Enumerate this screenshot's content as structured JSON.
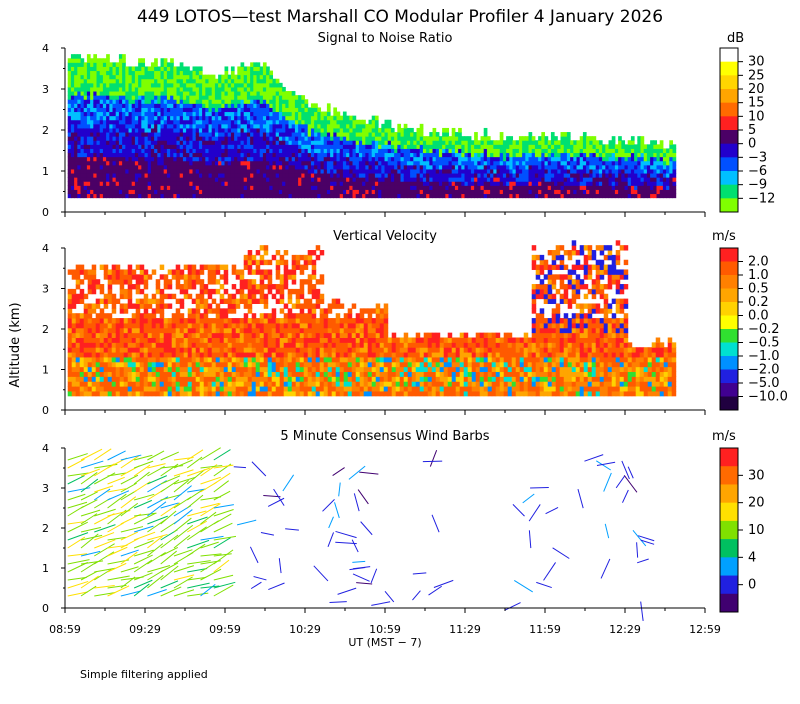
{
  "title": "449 LOTOS—test Marshall CO Modular Profiler  4 January 2026",
  "footer_note": "Simple filtering applied",
  "y_axis_label": "Altitude (km)",
  "x_axis_label": "UT  (MST − 7)",
  "x_ticks": [
    "08:59",
    "09:29",
    "09:59",
    "10:29",
    "10:59",
    "11:29",
    "11:59",
    "12:29",
    "12:59"
  ],
  "y_ticks": [
    "0",
    "1",
    "2",
    "3",
    "4"
  ],
  "chart_data": [
    {
      "type": "heatmap",
      "title": "Signal to Noise Ratio",
      "unit": "dB",
      "xlabel": "UT  (MST − 7)",
      "ylabel": "Altitude (km)",
      "x_range_hours": [
        8.983,
        12.983
      ],
      "ylim": [
        0,
        4
      ],
      "colorbar_labels": [
        "30",
        "25",
        "20",
        "15",
        "10",
        "5",
        "0",
        "−3",
        "−6",
        "−9",
        "−12"
      ],
      "colorbar_colors": [
        "#ffffff",
        "#ffff00",
        "#ffd500",
        "#ffa500",
        "#ff6a00",
        "#ff2020",
        "#4b0066",
        "#2200cc",
        "#0050ff",
        "#00c0ff",
        "#00e070",
        "#80ff00"
      ],
      "profile_top_km": [
        3.8,
        3.7,
        3.6,
        3.3,
        3.6,
        2.6,
        2.3,
        2.0,
        1.9,
        1.8,
        1.8,
        1.7,
        1.7,
        1.6
      ],
      "profile_hours": [
        9.0,
        9.3,
        9.6,
        9.9,
        10.2,
        10.5,
        10.8,
        11.1,
        11.4,
        11.7,
        12.0,
        12.3,
        12.6,
        12.75
      ]
    },
    {
      "type": "heatmap",
      "title": "Vertical Velocity",
      "unit": "m/s",
      "xlabel": "UT  (MST − 7)",
      "ylabel": "Altitude (km)",
      "x_range_hours": [
        8.983,
        12.983
      ],
      "ylim": [
        0,
        4
      ],
      "colorbar_labels": [
        "2.0",
        "1.0",
        "0.5",
        "0.2",
        "0.0",
        "−0.2",
        "−0.5",
        "−1.0",
        "−2.0",
        "−5.0",
        "−10.0"
      ],
      "colorbar_colors": [
        "#ff2020",
        "#ff5a00",
        "#ff8000",
        "#ffa500",
        "#ffd200",
        "#ffff00",
        "#30e030",
        "#00e0d0",
        "#0090ff",
        "#2020e0",
        "#400090",
        "#200040"
      ]
    },
    {
      "type": "scatter",
      "title": "5 Minute Consensus Wind Barbs",
      "unit": "m/s",
      "xlabel": "UT  (MST − 7)",
      "ylabel": "Altitude (km)",
      "x_range_hours": [
        8.983,
        12.983
      ],
      "ylim": [
        0,
        4
      ],
      "colorbar_labels": [
        "30",
        "20",
        "10",
        "4",
        "0"
      ],
      "colorbar_colors": [
        "#ff2020",
        "#ff6a00",
        "#ffa500",
        "#ffe000",
        "#80e000",
        "#00c060",
        "#00a0ff",
        "#2020e0",
        "#400070"
      ]
    }
  ]
}
